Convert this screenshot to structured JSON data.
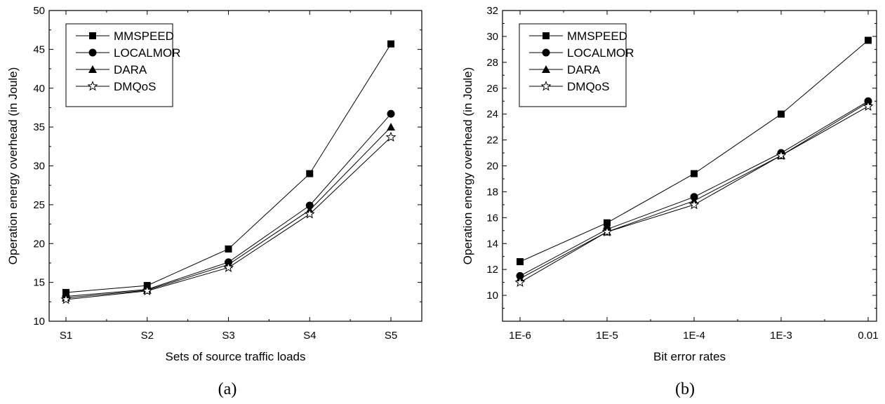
{
  "chart_data": [
    {
      "type": "line",
      "caption": "(a)",
      "xlabel": "Sets of source traffic loads",
      "ylabel": "Operation energy overhead (in Joule)",
      "categories": [
        "S1",
        "S2",
        "S3",
        "S4",
        "S5"
      ],
      "ylim": [
        10,
        50
      ],
      "yticks": [
        "10",
        "15",
        "20",
        "25",
        "30",
        "35",
        "40",
        "45",
        "50"
      ],
      "legend_position": "top-left",
      "grid": false,
      "series": [
        {
          "name": "MMSPEED",
          "marker": "square",
          "values": [
            13.7,
            14.6,
            19.3,
            29.0,
            45.7
          ]
        },
        {
          "name": "LOCALMOR",
          "marker": "circle",
          "values": [
            13.2,
            14.1,
            17.6,
            24.9,
            36.7
          ]
        },
        {
          "name": "DARA",
          "marker": "triangle",
          "values": [
            13.0,
            14.0,
            17.3,
            24.3,
            35.0
          ]
        },
        {
          "name": "DMQoS",
          "marker": "star",
          "values": [
            12.8,
            13.9,
            16.9,
            23.8,
            33.7
          ]
        }
      ]
    },
    {
      "type": "line",
      "caption": "(b)",
      "xlabel": "Bit error rates",
      "ylabel": "Operation energy overhead (in Joule)",
      "categories": [
        "1E-6",
        "1E-5",
        "1E-4",
        "1E-3",
        "0.01"
      ],
      "ylim": [
        8,
        32
      ],
      "yticks": [
        "10",
        "12",
        "14",
        "16",
        "18",
        "20",
        "22",
        "24",
        "26",
        "28",
        "30",
        "32"
      ],
      "legend_position": "top-left",
      "grid": false,
      "series": [
        {
          "name": "MMSPEED",
          "marker": "square",
          "values": [
            12.6,
            15.6,
            19.4,
            24.0,
            29.7
          ]
        },
        {
          "name": "LOCALMOR",
          "marker": "circle",
          "values": [
            11.5,
            15.1,
            17.6,
            21.0,
            25.0
          ]
        },
        {
          "name": "DARA",
          "marker": "triangle",
          "values": [
            11.3,
            14.9,
            17.3,
            20.8,
            24.9
          ]
        },
        {
          "name": "DMQoS",
          "marker": "star",
          "values": [
            11.0,
            14.9,
            17.0,
            20.8,
            24.6
          ]
        }
      ]
    }
  ]
}
